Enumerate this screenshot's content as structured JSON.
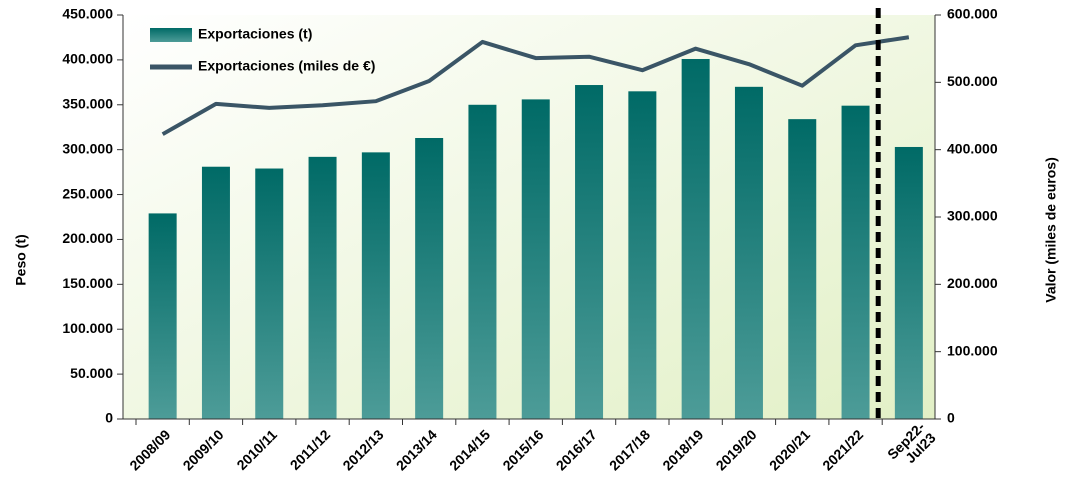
{
  "chart_data": {
    "type": "bar_line",
    "categories": [
      "2008/09",
      "2009/10",
      "2010/11",
      "2011/12",
      "2012/13",
      "2013/14",
      "2014/15",
      "2015/16",
      "2016/17",
      "2017/18",
      "2018/19",
      "2019/20",
      "2020/21",
      "2021/22",
      "Sep22-\nJul23"
    ],
    "series": [
      {
        "name": "Exportaciones (t)",
        "color": "#00706c",
        "kind": "bar",
        "values": [
          229000,
          281000,
          279000,
          292000,
          297000,
          313000,
          350000,
          356000,
          372000,
          365000,
          401000,
          370000,
          334000,
          349000,
          303000
        ]
      },
      {
        "name": "Exportaciones (miles de €)",
        "color": "#3a5566",
        "kind": "line",
        "axis": "y2",
        "values": [
          423000,
          468000,
          462000,
          466000,
          472000,
          502000,
          560000,
          536000,
          538000,
          518000,
          550000,
          527000,
          495000,
          555000,
          567000
        ]
      }
    ],
    "ylabel": "Peso (t)",
    "y2label": "Valor (miles de euros)",
    "ylim": [
      0,
      450000
    ],
    "yticks": [
      0,
      {
        "value": 50000,
        "label": "50.000"
      },
      {
        "value": 100000,
        "label": "100.000"
      },
      {
        "value": 150000,
        "label": "150.000"
      },
      {
        "value": 200000,
        "label": "200.000"
      },
      {
        "value": 250000,
        "label": "250.000"
      },
      {
        "value": 300000,
        "label": "300.000"
      },
      {
        "value": 350000,
        "label": "350.000"
      },
      {
        "value": 400000,
        "label": "400.000"
      },
      {
        "value": 450000,
        "label": "450.000"
      }
    ],
    "y2lim": [
      0,
      600000
    ],
    "y2ticks": [
      0,
      {
        "value": 100000,
        "label": "100.000"
      },
      {
        "value": 200000,
        "label": "200.000"
      },
      {
        "value": 300000,
        "label": "300.000"
      },
      {
        "value": 400000,
        "label": "400.000"
      },
      {
        "value": 500000,
        "label": "500.000"
      },
      {
        "value": 600000,
        "label": "600.000"
      }
    ],
    "legend": "upper left"
  }
}
